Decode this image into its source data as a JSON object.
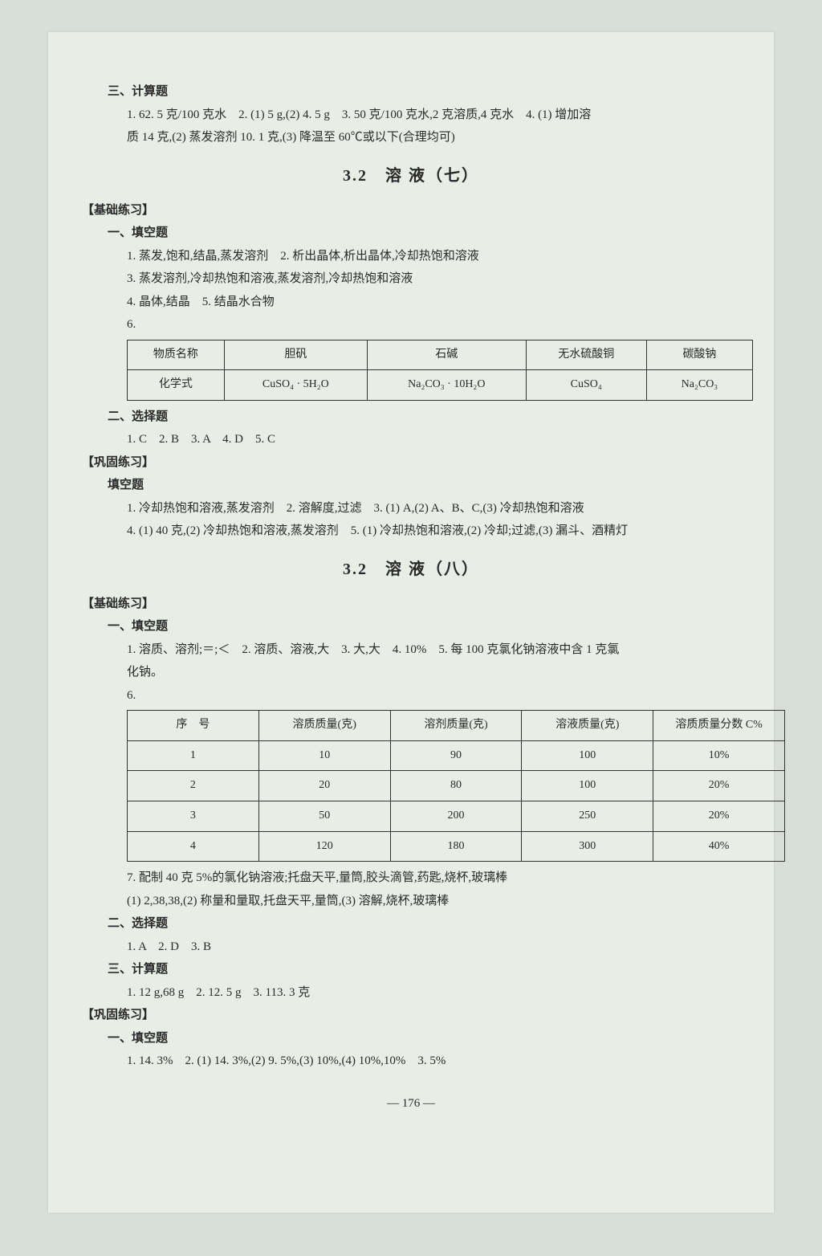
{
  "topSection": {
    "header": "三、计算题",
    "line1": "1. 62. 5 克/100 克水　2. (1) 5 g,(2) 4. 5 g　3. 50 克/100 克水,2 克溶质,4 克水　4. (1) 增加溶",
    "line2": "质 14 克,(2) 蒸发溶剂 10. 1 克,(3) 降温至 60℃或以下(合理均可)"
  },
  "title7": "3.2　溶 液（七）",
  "sec7": {
    "basic": "【基础练习】",
    "fill": "一、填空题",
    "f1": "1. 蒸发,饱和,结晶,蒸发溶剂　2. 析出晶体,析出晶体,冷却热饱和溶液",
    "f3": "3. 蒸发溶剂,冷却热饱和溶液,蒸发溶剂,冷却热饱和溶液",
    "f4": "4. 晶体,结晶　5. 结晶水合物",
    "f6label": "6.",
    "table1": {
      "columns": [
        "物质名称",
        "胆矾",
        "石碱",
        "无水硫酸铜",
        "碳酸钠"
      ],
      "rows": [
        [
          "化学式",
          "CuSO₄ · 5H₂O",
          "Na₂CO₃ · 10H₂O",
          "CuSO₄",
          "Na₂CO₃"
        ]
      ],
      "border_color": "#333",
      "background": "#e8ede5"
    },
    "choice": "二、选择题",
    "c1": "1. C　2. B　3. A　4. D　5. C",
    "consol": "【巩固练习】",
    "consolFill": "填空题",
    "cf1": "1. 冷却热饱和溶液,蒸发溶剂　2. 溶解度,过滤　3. (1) A,(2) A、B、C,(3) 冷却热饱和溶液",
    "cf4": "4. (1) 40 克,(2) 冷却热饱和溶液,蒸发溶剂　5. (1) 冷却热饱和溶液,(2) 冷却;过滤,(3) 漏斗、酒精灯"
  },
  "title8": "3.2　溶 液（八）",
  "sec8": {
    "basic": "【基础练习】",
    "fill": "一、填空题",
    "f1": "1. 溶质、溶剂;＝;＜　2. 溶质、溶液,大　3. 大,大　4. 10%　5. 每 100 克氯化钠溶液中含 1 克氯",
    "f1b": "化钠。",
    "f6label": "6.",
    "table2": {
      "columns": [
        "序　号",
        "溶质质量(克)",
        "溶剂质量(克)",
        "溶液质量(克)",
        "溶质质量分数 C%"
      ],
      "rows": [
        [
          "1",
          "10",
          "90",
          "100",
          "10%"
        ],
        [
          "2",
          "20",
          "80",
          "100",
          "20%"
        ],
        [
          "3",
          "50",
          "200",
          "250",
          "20%"
        ],
        [
          "4",
          "120",
          "180",
          "300",
          "40%"
        ]
      ],
      "border_color": "#333",
      "background": "#e8ede5"
    },
    "f7a": "7. 配制 40 克 5%的氯化钠溶液;托盘天平,量筒,胶头滴管,药匙,烧杯,玻璃棒",
    "f7b": "(1) 2,38,38,(2) 称量和量取,托盘天平,量筒,(3) 溶解,烧杯,玻璃棒",
    "choice": "二、选择题",
    "c1": "1. A　2. D　3. B",
    "calc": "三、计算题",
    "calc1": "1. 12 g,68 g　2. 12. 5 g　3. 113. 3 克",
    "consol": "【巩固练习】",
    "consolFill": "一、填空题",
    "cf1": "1. 14. 3%　2. (1) 14. 3%,(2) 9. 5%,(3) 10%,(4) 10%,10%　3. 5%"
  },
  "pageNum": "— 176 —"
}
